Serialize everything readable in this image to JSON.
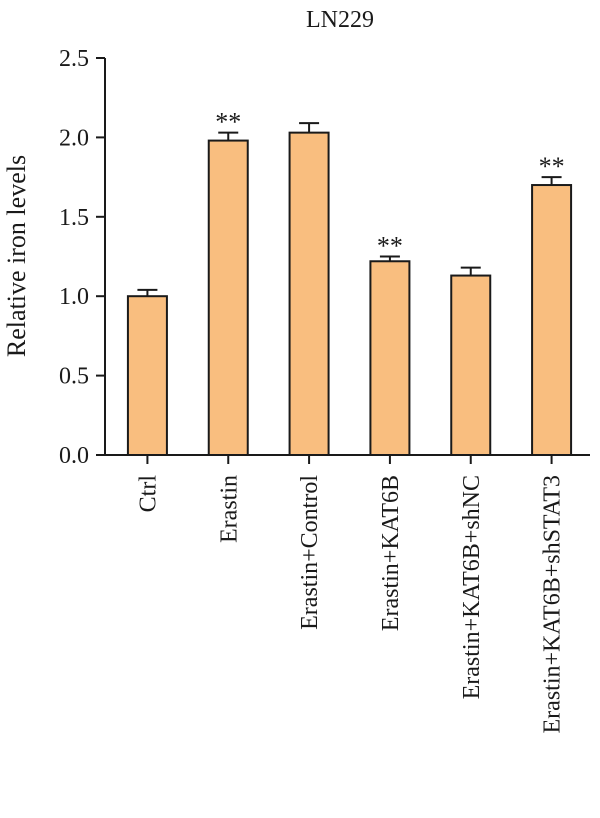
{
  "chart_data": {
    "type": "bar",
    "title": "LN229",
    "xlabel": "",
    "ylabel": "Relative iron levels",
    "ylim": [
      0,
      2.5
    ],
    "yticks": [
      "0.0",
      "0.5",
      "1.0",
      "1.5",
      "2.0",
      "2.5"
    ],
    "categories": [
      "Ctrl",
      "Erastin",
      "Erastin+Control",
      "Erastin+KAT6B",
      "Erastin+KAT6B+shNC",
      "Erastin+KAT6B+shSTAT3"
    ],
    "values": [
      1.0,
      1.98,
      2.03,
      1.22,
      1.13,
      1.7
    ],
    "errors": [
      0.04,
      0.05,
      0.06,
      0.03,
      0.05,
      0.05
    ],
    "annotations": [
      "",
      "**",
      "",
      "**",
      "",
      "**"
    ],
    "grid": false,
    "bar_color": "#f9be7f",
    "edge_color": "#1a1a1a"
  }
}
